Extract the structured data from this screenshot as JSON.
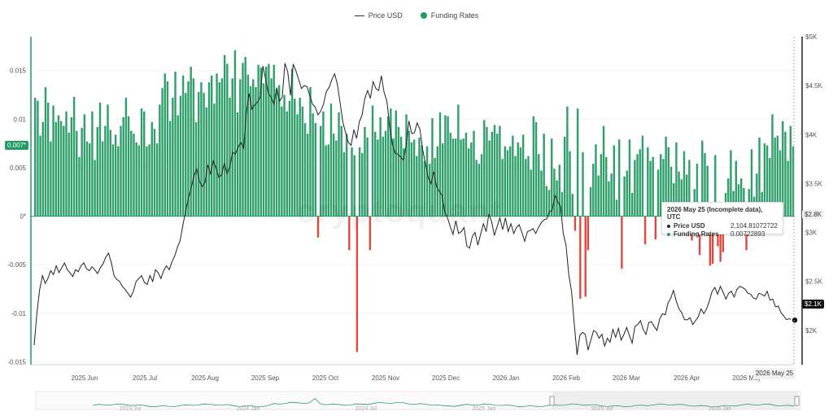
{
  "legend": {
    "price_label": "Price USD",
    "funding_label": "Funding Rates"
  },
  "colors": {
    "funding_pos": "#2e9e6a",
    "funding_neg": "#e0483e",
    "price": "#222222",
    "axis_left": "#2e9e6a"
  },
  "watermark": "cryptoquant",
  "tooltip": {
    "title": "2026 May 25 (Incomplete data), UTC",
    "price_label": "Price USD",
    "price_value": "2,104.81072722",
    "funding_label": "Funding Rates",
    "funding_value": "0.00722893"
  },
  "badges": {
    "left_current": "0.007*",
    "right_current": "$2.1K",
    "right_hover": "$2.8K",
    "x_hover": "2026 May 25"
  },
  "chart_data": {
    "type": "bar",
    "x_axis": {
      "ticks": [
        "2025 Jun",
        "2025 Jul",
        "2025 Aug",
        "2025 Sep",
        "2025 Oct",
        "2025 Nov",
        "2025 Dec",
        "2026 Jan",
        "2026 Feb",
        "2026 Mar",
        "2026 Apr",
        "2026 May"
      ]
    },
    "y_left": {
      "ticks": [
        "0.015",
        "0.01",
        "0.005",
        "0*",
        "-0.005",
        "-0.01",
        "-0.015"
      ],
      "range": [
        -0.0153,
        0.0185
      ]
    },
    "y_right": {
      "ticks": [
        "$5K",
        "$4.5K",
        "$4K",
        "$3.5K",
        "$3K",
        "$2.5K",
        "$2K"
      ],
      "range": [
        1650,
        5000
      ]
    },
    "funding_rates": [
      0.0122,
      0.0119,
      0.0083,
      0.0097,
      0.0133,
      0.0117,
      0.0077,
      0.0114,
      0.0097,
      0.0104,
      0.0098,
      0.0093,
      0.0108,
      0.0086,
      0.0102,
      0.0123,
      0.0088,
      0.0061,
      0.0091,
      0.0105,
      0.0077,
      0.0075,
      0.0108,
      0.0058,
      0.0092,
      0.0117,
      0.0077,
      0.0093,
      0.0115,
      0.0089,
      0.0074,
      0.0084,
      0.0072,
      0.0093,
      0.0102,
      0.0122,
      0.0103,
      0.0088,
      0.0085,
      0.0076,
      0.0073,
      0.0111,
      0.0108,
      0.0072,
      0.0074,
      0.0097,
      0.009,
      0.0075,
      0.0115,
      0.0132,
      0.0147,
      0.0139,
      0.0098,
      0.0122,
      0.0149,
      0.0104,
      0.0124,
      0.0145,
      0.0127,
      0.0139,
      0.0154,
      0.0142,
      0.0097,
      0.0128,
      0.0138,
      0.0127,
      0.0112,
      0.0138,
      0.0145,
      0.0116,
      0.0147,
      0.0138,
      0.0142,
      0.0166,
      0.0157,
      0.0122,
      0.0142,
      0.0171,
      0.0107,
      0.0141,
      0.0158,
      0.0164,
      0.0146,
      0.0134,
      0.0141,
      0.0133,
      0.0156,
      0.0153,
      0.0137,
      0.0154,
      0.0157,
      0.0142,
      0.0156,
      0.0131,
      0.0135,
      0.0113,
      0.0125,
      0.0108,
      0.0119,
      0.0152,
      0.0121,
      0.0105,
      0.0122,
      0.0113,
      0.0096,
      0.0085,
      0.0133,
      0.0106,
      0.0096,
      -0.0022,
      0.0093,
      0.0108,
      0.0073,
      0.0074,
      0.0116,
      0.0085,
      0.0078,
      0.0107,
      0.0093,
      0.0066,
      0.0085,
      -0.0035,
      0.0071,
      0.0063,
      -0.014,
      0.0071,
      0.0065,
      0.0092,
      0.0081,
      -0.0035,
      0.0114,
      0.0087,
      0.0079,
      0.0102,
      0.0082,
      0.0088,
      0.0103,
      0.0111,
      0.008,
      0.0109,
      0.0092,
      0.0082,
      0.007,
      0.0105,
      0.0088,
      0.0076,
      0.0079,
      0.0062,
      0.0081,
      0.0073,
      0.0057,
      0.0072,
      0.0054,
      0.0101,
      0.006,
      0.0072,
      0.0107,
      0.0075,
      0.0104,
      0.0103,
      0.0086,
      0.008,
      0.008,
      0.0115,
      0.0079,
      0.008,
      0.0086,
      0.007,
      0.0076,
      0.0088,
      0.0058,
      0.0054,
      0.0064,
      0.0099,
      0.0092,
      0.0078,
      0.0087,
      0.0094,
      0.0085,
      0.0093,
      0.0059,
      0.0072,
      0.0068,
      0.0072,
      0.0083,
      0.0062,
      0.0076,
      0.0071,
      0.0084,
      0.0059,
      0.0062,
      0.0048,
      0.0103,
      0.0097,
      0.0064,
      0.0047,
      0.0085,
      0.0031,
      0.0027,
      0.008,
      0.0049,
      0.0037,
      0.0053,
      0.0025,
      0.0082,
      0.0113,
      0.0067,
      0.0023,
      -0.0015,
      0.0111,
      -0.0085,
      0.0066,
      -0.0083,
      -0.0035,
      0.003,
      0.0054,
      0.0074,
      0.0042,
      0.0064,
      0.0093,
      0.0061,
      0.0036,
      0.0044,
      0.0073,
      0.0017,
      0.0079,
      -0.0054,
      0.0041,
      0.0047,
      0.0079,
      0.0024,
      0.0058,
      0.0064,
      0.0069,
      0.0083,
      -0.0029,
      0.0071,
      0.0057,
      0.0061,
      -0.0024,
      0.0048,
      0.0064,
      0.0059,
      0.0082,
      0.0071,
      0.0051,
      0.0034,
      0.0076,
      0.0046,
      0.0038,
      0.0067,
      0.0043,
      0.0058,
      -0.0025,
      0.0028,
      0.0054,
      -0.004,
      0.0078,
      0.0065,
      0.0052,
      -0.0051,
      -0.0049,
      0.0063,
      -0.0031,
      -0.0047,
      -0.0037,
      0.0024,
      0.0039,
      0.0068,
      0.0026,
      0.0057,
      0.0033,
      0.0039,
      0.0029,
      -0.0035,
      0.0028,
      0.0069,
      0.002,
      0.0044,
      0.0081,
      0.0025,
      0.0075,
      0.0073,
      0.006,
      0.0105,
      0.0081,
      0.0083,
      0.0068,
      0.0098,
      0.0087,
      0.0057,
      0.0093,
      0.0072
    ],
    "price_usd": [
      1850,
      2180,
      2420,
      2560,
      2480,
      2530,
      2610,
      2570,
      2660,
      2590,
      2640,
      2690,
      2620,
      2590,
      2550,
      2620,
      2600,
      2660,
      2690,
      2630,
      2610,
      2650,
      2620,
      2580,
      2640,
      2680,
      2750,
      2790,
      2690,
      2560,
      2520,
      2500,
      2450,
      2420,
      2380,
      2340,
      2400,
      2500,
      2530,
      2560,
      2490,
      2470,
      2560,
      2500,
      2620,
      2590,
      2530,
      2610,
      2660,
      2620,
      2700,
      2760,
      2850,
      2920,
      3080,
      3220,
      3350,
      3460,
      3580,
      3650,
      3520,
      3470,
      3510,
      3690,
      3600,
      3730,
      3660,
      3560,
      3590,
      3710,
      3600,
      3670,
      3820,
      3800,
      3870,
      3920,
      3860,
      4230,
      4420,
      4260,
      4300,
      4330,
      4380,
      4700,
      4560,
      4420,
      4380,
      4310,
      4480,
      4340,
      4380,
      4730,
      4640,
      4400,
      4720,
      4650,
      4560,
      4470,
      4500,
      4490,
      4400,
      4310,
      4280,
      4200,
      4240,
      4310,
      4440,
      4480,
      4560,
      4620,
      4520,
      4330,
      4130,
      4020,
      3920,
      3890,
      4050,
      3960,
      4130,
      4200,
      4370,
      4450,
      4370,
      4540,
      4470,
      4450,
      4600,
      4430,
      4340,
      4090,
      3900,
      3810,
      3800,
      3770,
      3740,
      3890,
      4140,
      4010,
      4020,
      4120,
      4050,
      3840,
      3700,
      3560,
      3500,
      3620,
      3470,
      3420,
      3380,
      3210,
      3150,
      3060,
      2980,
      3120,
      2990,
      3010,
      3050,
      2860,
      2840,
      2960,
      3000,
      2870,
      2980,
      3090,
      3010,
      3190,
      3110,
      2970,
      3060,
      3150,
      3030,
      3150,
      3010,
      3090,
      2990,
      3050,
      3080,
      3000,
      2910,
      3010,
      3020,
      3040,
      2990,
      3050,
      3100,
      3130,
      3140,
      3210,
      3230,
      3380,
      3310,
      3270,
      2990,
      2870,
      2570,
      2400,
      2060,
      1750,
      1950,
      1980,
      1960,
      1800,
      1900,
      2000,
      1980,
      1920,
      1960,
      1840,
      1920,
      1880,
      2010,
      1930,
      2020,
      1900,
      1960,
      2030,
      1950,
      1870,
      2040,
      2060,
      2100,
      2010,
      1960,
      2080,
      2090,
      2040,
      2000,
      2120,
      2170,
      2160,
      2280,
      2330,
      2410,
      2300,
      2220,
      2180,
      2110,
      2110,
      2130,
      2060,
      2100,
      2140,
      2220,
      2170,
      2220,
      2300,
      2400,
      2440,
      2370,
      2450,
      2390,
      2320,
      2380,
      2400,
      2340,
      2420,
      2450,
      2440,
      2420,
      2380,
      2370,
      2330,
      2320,
      2380,
      2370,
      2350,
      2400,
      2310,
      2320,
      2240,
      2250,
      2180,
      2150,
      2110,
      2120,
      2110,
      2105
    ]
  },
  "navigator": {
    "labels": [
      "2023 Jul",
      "2024 Jan",
      "2024 Jul",
      "2025 Jan",
      "2025 Jul",
      "2026 Jan"
    ]
  }
}
